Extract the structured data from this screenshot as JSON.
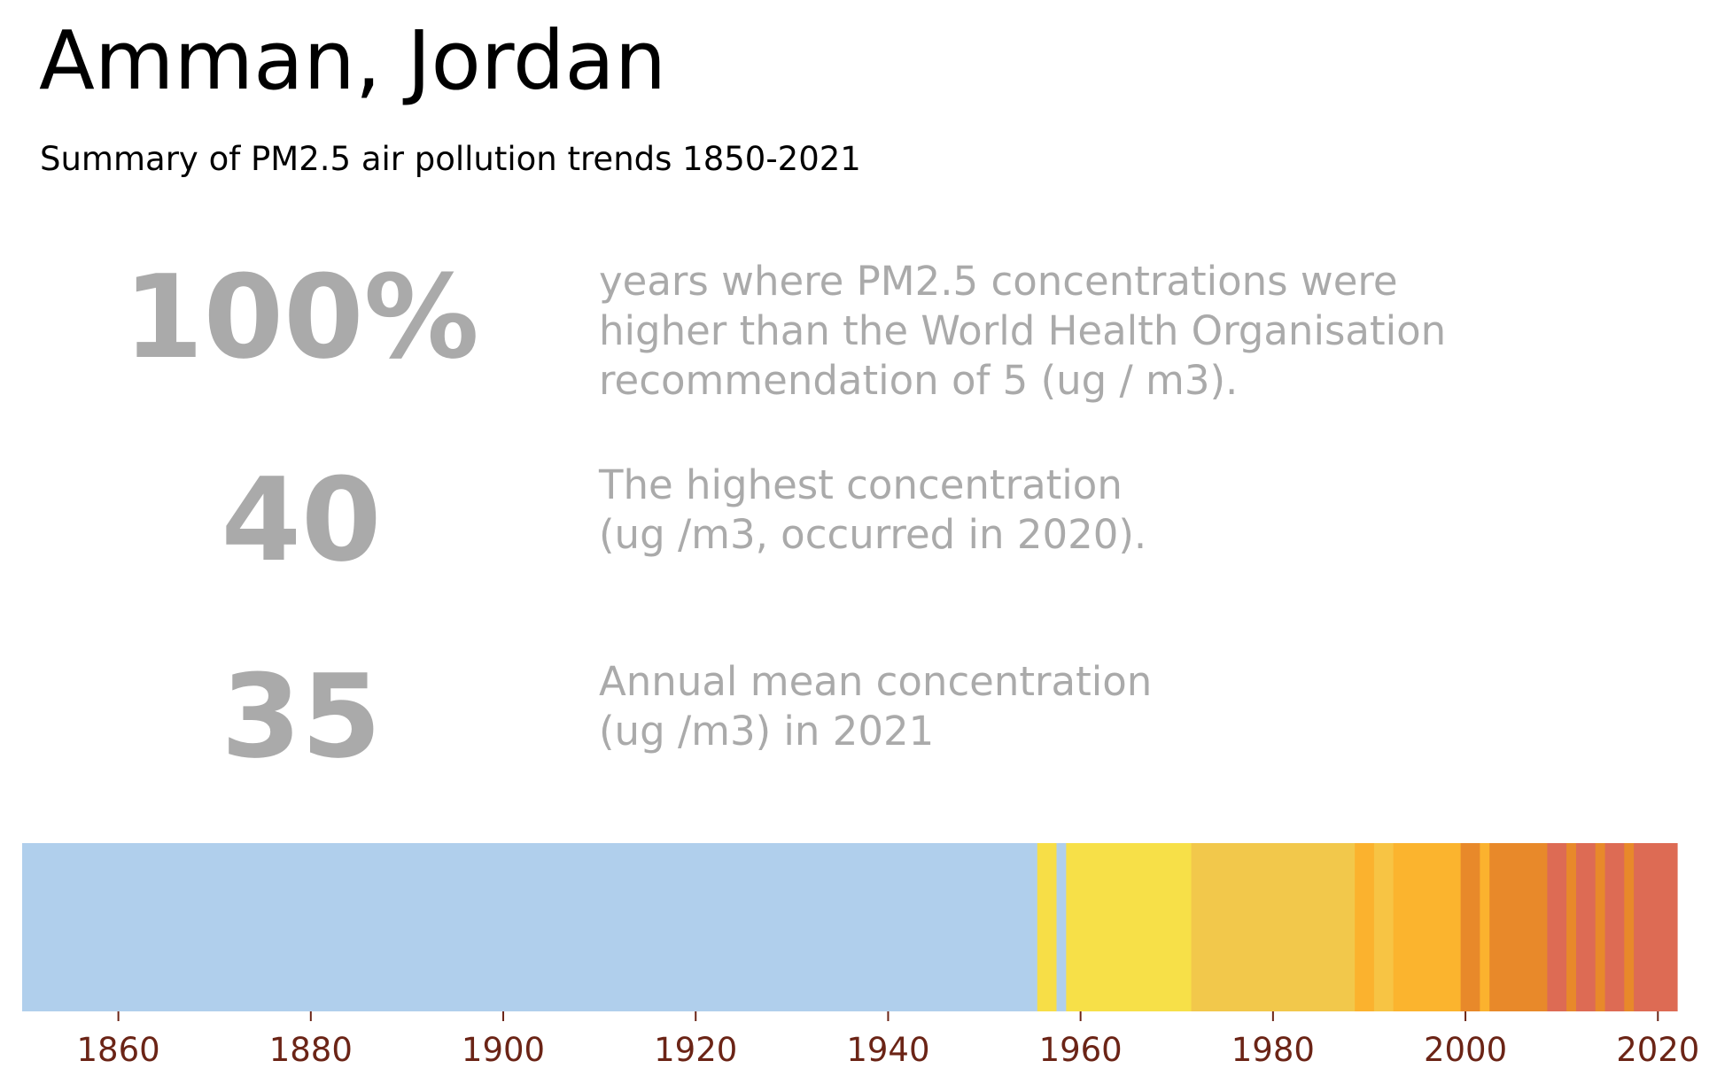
{
  "header": {
    "title": "Amman, Jordan",
    "subtitle": "Summary of PM2.5 air pollution trends 1850-2021"
  },
  "stats": [
    {
      "value": "100%",
      "description": "years where PM2.5 concentrations were\nhigher than the World Health Organisation\nrecommendation of 5 (ug / m3)."
    },
    {
      "value": "40",
      "description": "The highest concentration\n(ug /m3, occurred in 2020)."
    },
    {
      "value": "35",
      "description": "Annual mean concentration\n(ug /m3) in 2021"
    }
  ],
  "chart_data": {
    "type": "heatmap",
    "title": "",
    "xlabel": "",
    "ylabel": "",
    "xlim": [
      1850,
      2022
    ],
    "grid": false,
    "x_ticks": [
      1860,
      1880,
      1900,
      1920,
      1940,
      1960,
      1980,
      2000,
      2020
    ],
    "tick_color": "#6b2416",
    "bands": [
      {
        "start": 1850,
        "end": 1955.5,
        "color": "#b0cfec"
      },
      {
        "start": 1955.5,
        "end": 1957.5,
        "color": "#f7de47"
      },
      {
        "start": 1957.5,
        "end": 1958.5,
        "color": "#b0cfec"
      },
      {
        "start": 1958.5,
        "end": 1971.5,
        "color": "#f7e048"
      },
      {
        "start": 1971.5,
        "end": 1988.5,
        "color": "#f2c84b"
      },
      {
        "start": 1988.5,
        "end": 1990.5,
        "color": "#fbb22e"
      },
      {
        "start": 1990.5,
        "end": 1992.5,
        "color": "#f7c444"
      },
      {
        "start": 1992.5,
        "end": 1999.5,
        "color": "#fbb42e"
      },
      {
        "start": 1999.5,
        "end": 2001.5,
        "color": "#e8892a"
      },
      {
        "start": 2001.5,
        "end": 2002.5,
        "color": "#fbb22e"
      },
      {
        "start": 2002.5,
        "end": 2008.5,
        "color": "#e8892a"
      },
      {
        "start": 2008.5,
        "end": 2010.5,
        "color": "#dd6b54"
      },
      {
        "start": 2010.5,
        "end": 2011.5,
        "color": "#e8892a"
      },
      {
        "start": 2011.5,
        "end": 2013.5,
        "color": "#dd6b54"
      },
      {
        "start": 2013.5,
        "end": 2014.5,
        "color": "#e8892a"
      },
      {
        "start": 2014.5,
        "end": 2016.5,
        "color": "#dd6b54"
      },
      {
        "start": 2016.5,
        "end": 2017.5,
        "color": "#e8892a"
      },
      {
        "start": 2017.5,
        "end": 2022,
        "color": "#dd6b54"
      }
    ]
  }
}
